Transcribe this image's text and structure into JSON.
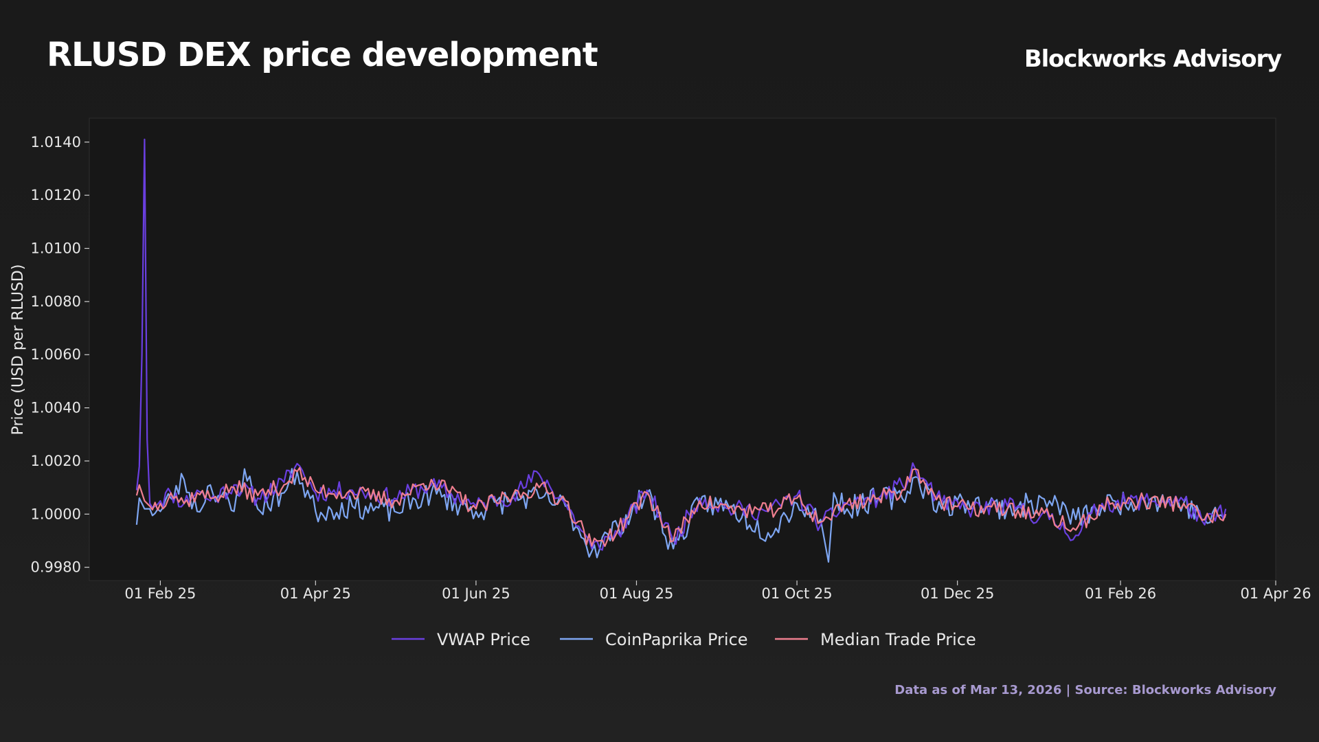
{
  "header": {
    "title": "RLUSD DEX price development",
    "brand": "Blockworks Advisory"
  },
  "footer": {
    "source": "Data as of Mar 13, 2026 | Source: Blockworks Advisory"
  },
  "chart_data": {
    "type": "line",
    "title": "RLUSD DEX price development",
    "xlabel": "",
    "ylabel": "Price (USD per RLUSD)",
    "x_range": [
      "2025-01-05",
      "2026-04-01"
    ],
    "ylim": [
      0.9975,
      1.0149
    ],
    "x_ticks": [
      {
        "date": "2025-02-01",
        "label": "01 Feb 25"
      },
      {
        "date": "2025-04-01",
        "label": "01 Apr 25"
      },
      {
        "date": "2025-06-01",
        "label": "01 Jun 25"
      },
      {
        "date": "2025-08-01",
        "label": "01 Aug 25"
      },
      {
        "date": "2025-10-01",
        "label": "01 Oct 25"
      },
      {
        "date": "2025-12-01",
        "label": "01 Dec 25"
      },
      {
        "date": "2026-02-01",
        "label": "01 Feb 26"
      },
      {
        "date": "2026-04-01",
        "label": "01 Apr 26"
      }
    ],
    "y_ticks": [
      {
        "value": 0.998,
        "label": "0.9980"
      },
      {
        "value": 1.0,
        "label": "1.0000"
      },
      {
        "value": 1.002,
        "label": "1.0020"
      },
      {
        "value": 1.004,
        "label": "1.0040"
      },
      {
        "value": 1.006,
        "label": "1.0060"
      },
      {
        "value": 1.008,
        "label": "1.0080"
      },
      {
        "value": 1.01,
        "label": "1.0100"
      },
      {
        "value": 1.012,
        "label": "1.0120"
      },
      {
        "value": 1.014,
        "label": "1.0140"
      }
    ],
    "grid": false,
    "legend_position": "bottom-center",
    "series": [
      {
        "name": "VWAP Price",
        "color": "#6a3fe0",
        "points": [
          [
            "2025-01-23",
            1.0009
          ],
          [
            "2025-01-24",
            1.0018
          ],
          [
            "2025-01-25",
            1.006
          ],
          [
            "2025-01-26",
            1.0141
          ],
          [
            "2025-01-27",
            1.0028
          ],
          [
            "2025-01-28",
            1.0004
          ],
          [
            "2025-02-01",
            1.0005
          ],
          [
            "2025-02-05",
            1.0008
          ],
          [
            "2025-02-10",
            1.0004
          ],
          [
            "2025-02-15",
            1.0009
          ],
          [
            "2025-02-20",
            1.0005
          ],
          [
            "2025-03-01",
            1.0011
          ],
          [
            "2025-03-10",
            1.0006
          ],
          [
            "2025-03-20",
            1.0012
          ],
          [
            "2025-03-25",
            1.0019
          ],
          [
            "2025-04-01",
            1.0008
          ],
          [
            "2025-04-15",
            1.0009
          ],
          [
            "2025-05-01",
            1.0006
          ],
          [
            "2025-05-15",
            1.0011
          ],
          [
            "2025-06-01",
            1.0003
          ],
          [
            "2025-06-15",
            1.0007
          ],
          [
            "2025-06-25",
            1.0015
          ],
          [
            "2025-07-05",
            1.0004
          ],
          [
            "2025-07-15",
            0.9987
          ],
          [
            "2025-07-25",
            0.9993
          ],
          [
            "2025-08-05",
            1.0009
          ],
          [
            "2025-08-15",
            0.999
          ],
          [
            "2025-08-25",
            1.0006
          ],
          [
            "2025-09-05",
            1.0002
          ],
          [
            "2025-09-20",
            1.0001
          ],
          [
            "2025-10-01",
            1.0007
          ],
          [
            "2025-10-10",
            0.9996
          ],
          [
            "2025-10-20",
            1.0004
          ],
          [
            "2025-11-01",
            1.0006
          ],
          [
            "2025-11-10",
            1.0011
          ],
          [
            "2025-11-15",
            1.0017
          ],
          [
            "2025-11-25",
            1.0004
          ],
          [
            "2025-12-05",
            1.0002
          ],
          [
            "2025-12-20",
            1.0003
          ],
          [
            "2026-01-05",
            0.9998
          ],
          [
            "2026-01-15",
            0.9992
          ],
          [
            "2026-01-25",
            1.0004
          ],
          [
            "2026-02-10",
            1.0005
          ],
          [
            "2026-02-25",
            1.0005
          ],
          [
            "2026-03-05",
            0.9996
          ],
          [
            "2026-03-13",
            1.0002
          ]
        ]
      },
      {
        "name": "CoinPaprika Price",
        "color": "#7ea6f2",
        "points": [
          [
            "2025-01-23",
            0.9996
          ],
          [
            "2025-01-24",
            1.0006
          ],
          [
            "2025-01-26",
            1.0002
          ],
          [
            "2025-01-28",
            1.0002
          ],
          [
            "2025-02-01",
            1.0001
          ],
          [
            "2025-02-05",
            1.0006
          ],
          [
            "2025-02-10",
            1.0013
          ],
          [
            "2025-02-15",
            1.0001
          ],
          [
            "2025-02-20",
            1.0011
          ],
          [
            "2025-03-01",
            1.0001
          ],
          [
            "2025-03-05",
            1.0017
          ],
          [
            "2025-03-10",
            1.0002
          ],
          [
            "2025-03-20",
            1.0008
          ],
          [
            "2025-03-25",
            1.0016
          ],
          [
            "2025-04-01",
            1.0001
          ],
          [
            "2025-04-15",
            1.0003
          ],
          [
            "2025-05-01",
            1.0001
          ],
          [
            "2025-05-15",
            1.0008
          ],
          [
            "2025-06-01",
            1.0001
          ],
          [
            "2025-06-15",
            1.0006
          ],
          [
            "2025-06-25",
            1.0006
          ],
          [
            "2025-07-05",
            1.0003
          ],
          [
            "2025-07-15",
            0.9986
          ],
          [
            "2025-07-25",
            0.9995
          ],
          [
            "2025-08-05",
            1.0008
          ],
          [
            "2025-08-15",
            0.9987
          ],
          [
            "2025-08-25",
            1.0004
          ],
          [
            "2025-09-05",
            1.0003
          ],
          [
            "2025-09-20",
            0.9993
          ],
          [
            "2025-10-01",
            1.0004
          ],
          [
            "2025-10-10",
            0.9998
          ],
          [
            "2025-10-13",
            0.9982
          ],
          [
            "2025-10-15",
            1.0008
          ],
          [
            "2025-10-20",
            1.0002
          ],
          [
            "2025-11-01",
            1.0006
          ],
          [
            "2025-11-10",
            1.0006
          ],
          [
            "2025-11-15",
            1.0014
          ],
          [
            "2025-11-25",
            1.0002
          ],
          [
            "2025-12-05",
            1.0005
          ],
          [
            "2025-12-20",
            1.0002
          ],
          [
            "2026-01-05",
            1.0005
          ],
          [
            "2026-01-15",
            0.9998
          ],
          [
            "2026-01-25",
            1.0003
          ],
          [
            "2026-02-10",
            1.0006
          ],
          [
            "2026-02-25",
            1.0004
          ],
          [
            "2026-03-05",
            0.9998
          ],
          [
            "2026-03-13",
            0.9999
          ]
        ]
      },
      {
        "name": "Median Trade Price",
        "color": "#ef7f8f",
        "points": [
          [
            "2025-01-23",
            1.0007
          ],
          [
            "2025-01-24",
            1.0011
          ],
          [
            "2025-01-26",
            1.0005
          ],
          [
            "2025-01-28",
            1.0003
          ],
          [
            "2025-02-01",
            1.0004
          ],
          [
            "2025-02-05",
            1.0008
          ],
          [
            "2025-02-10",
            1.0004
          ],
          [
            "2025-02-15",
            1.0008
          ],
          [
            "2025-02-20",
            1.0006
          ],
          [
            "2025-03-01",
            1.001
          ],
          [
            "2025-03-10",
            1.0007
          ],
          [
            "2025-03-20",
            1.0011
          ],
          [
            "2025-03-25",
            1.0016
          ],
          [
            "2025-04-01",
            1.0009
          ],
          [
            "2025-04-15",
            1.0008
          ],
          [
            "2025-05-01",
            1.0005
          ],
          [
            "2025-05-15",
            1.0013
          ],
          [
            "2025-06-01",
            1.0002
          ],
          [
            "2025-06-15",
            1.0007
          ],
          [
            "2025-06-25",
            1.001
          ],
          [
            "2025-07-05",
            1.0005
          ],
          [
            "2025-07-15",
            0.9988
          ],
          [
            "2025-07-25",
            0.9994
          ],
          [
            "2025-08-05",
            1.0008
          ],
          [
            "2025-08-15",
            0.999
          ],
          [
            "2025-08-25",
            1.0005
          ],
          [
            "2025-09-05",
            1.0002
          ],
          [
            "2025-09-20",
            1.0001
          ],
          [
            "2025-10-01",
            1.0006
          ],
          [
            "2025-10-10",
            0.9997
          ],
          [
            "2025-10-20",
            1.0004
          ],
          [
            "2025-11-01",
            1.0006
          ],
          [
            "2025-11-10",
            1.0009
          ],
          [
            "2025-11-15",
            1.0017
          ],
          [
            "2025-11-25",
            1.0004
          ],
          [
            "2025-12-05",
            1.0002
          ],
          [
            "2025-12-20",
            1.0002
          ],
          [
            "2026-01-05",
            0.9999
          ],
          [
            "2026-01-15",
            0.9994
          ],
          [
            "2026-01-25",
            1.0003
          ],
          [
            "2026-02-10",
            1.0005
          ],
          [
            "2026-02-25",
            1.0004
          ],
          [
            "2026-03-05",
            0.9998
          ],
          [
            "2026-03-13",
            1.0
          ]
        ]
      }
    ]
  }
}
